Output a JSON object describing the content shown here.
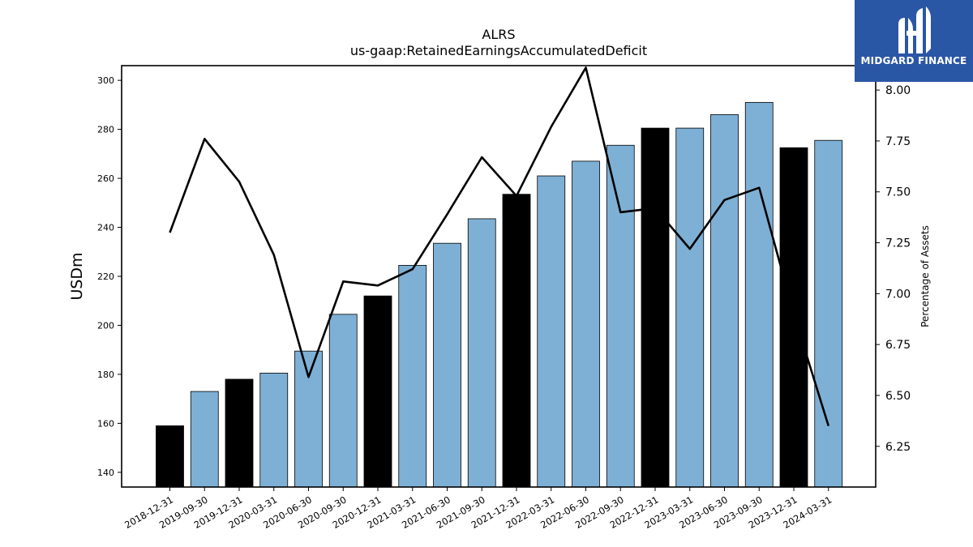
{
  "chart_data": {
    "type": "bar",
    "title": "ALRS",
    "subtitle": "us-gaap:RetainedEarningsAccumulatedDeficit",
    "ylabel": "USDm",
    "y2label": "Percentage of Assets",
    "ylim": [
      134,
      306
    ],
    "y2lim": [
      6.05,
      8.12
    ],
    "yticks": [
      140,
      160,
      180,
      200,
      220,
      240,
      260,
      280,
      300
    ],
    "y2ticks": [
      6.25,
      6.5,
      6.75,
      7.0,
      7.25,
      7.5,
      7.75,
      8.0
    ],
    "y2tick_labels": [
      "6.25",
      "6.50",
      "6.75",
      "7.00",
      "7.25",
      "7.50",
      "7.75",
      "8.00"
    ],
    "categories": [
      "2018-12-31",
      "2019-09-30",
      "2019-12-31",
      "2020-03-31",
      "2020-06-30",
      "2020-09-30",
      "2020-12-31",
      "2021-03-31",
      "2021-06-30",
      "2021-09-30",
      "2021-12-31",
      "2022-03-31",
      "2022-06-30",
      "2022-09-30",
      "2022-12-31",
      "2023-03-31",
      "2023-06-30",
      "2023-09-30",
      "2023-12-31",
      "2024-03-31"
    ],
    "series": [
      {
        "kind": "bar",
        "values": [
          159,
          173,
          178,
          180.5,
          189.5,
          204.5,
          212,
          224.5,
          233.5,
          243.5,
          253.5,
          261,
          267,
          273.5,
          280.5,
          280.5,
          286,
          291,
          272.5,
          275.5
        ],
        "colors": [
          "#000000",
          "#7eb0d5",
          "#000000",
          "#7eb0d5",
          "#7eb0d5",
          "#7eb0d5",
          "#000000",
          "#7eb0d5",
          "#7eb0d5",
          "#7eb0d5",
          "#000000",
          "#7eb0d5",
          "#7eb0d5",
          "#7eb0d5",
          "#000000",
          "#7eb0d5",
          "#7eb0d5",
          "#7eb0d5",
          "#000000",
          "#7eb0d5"
        ]
      },
      {
        "kind": "line",
        "axis": "right",
        "values": [
          7.3,
          7.76,
          7.55,
          7.19,
          6.59,
          7.06,
          7.04,
          7.12,
          7.39,
          7.67,
          7.48,
          7.82,
          8.11,
          7.4,
          7.42,
          7.22,
          7.46,
          7.52,
          6.9,
          6.35
        ],
        "color": "#000000"
      }
    ]
  },
  "logo": {
    "text": "MIDGARD FINANCE",
    "color": "#2a56a6"
  }
}
